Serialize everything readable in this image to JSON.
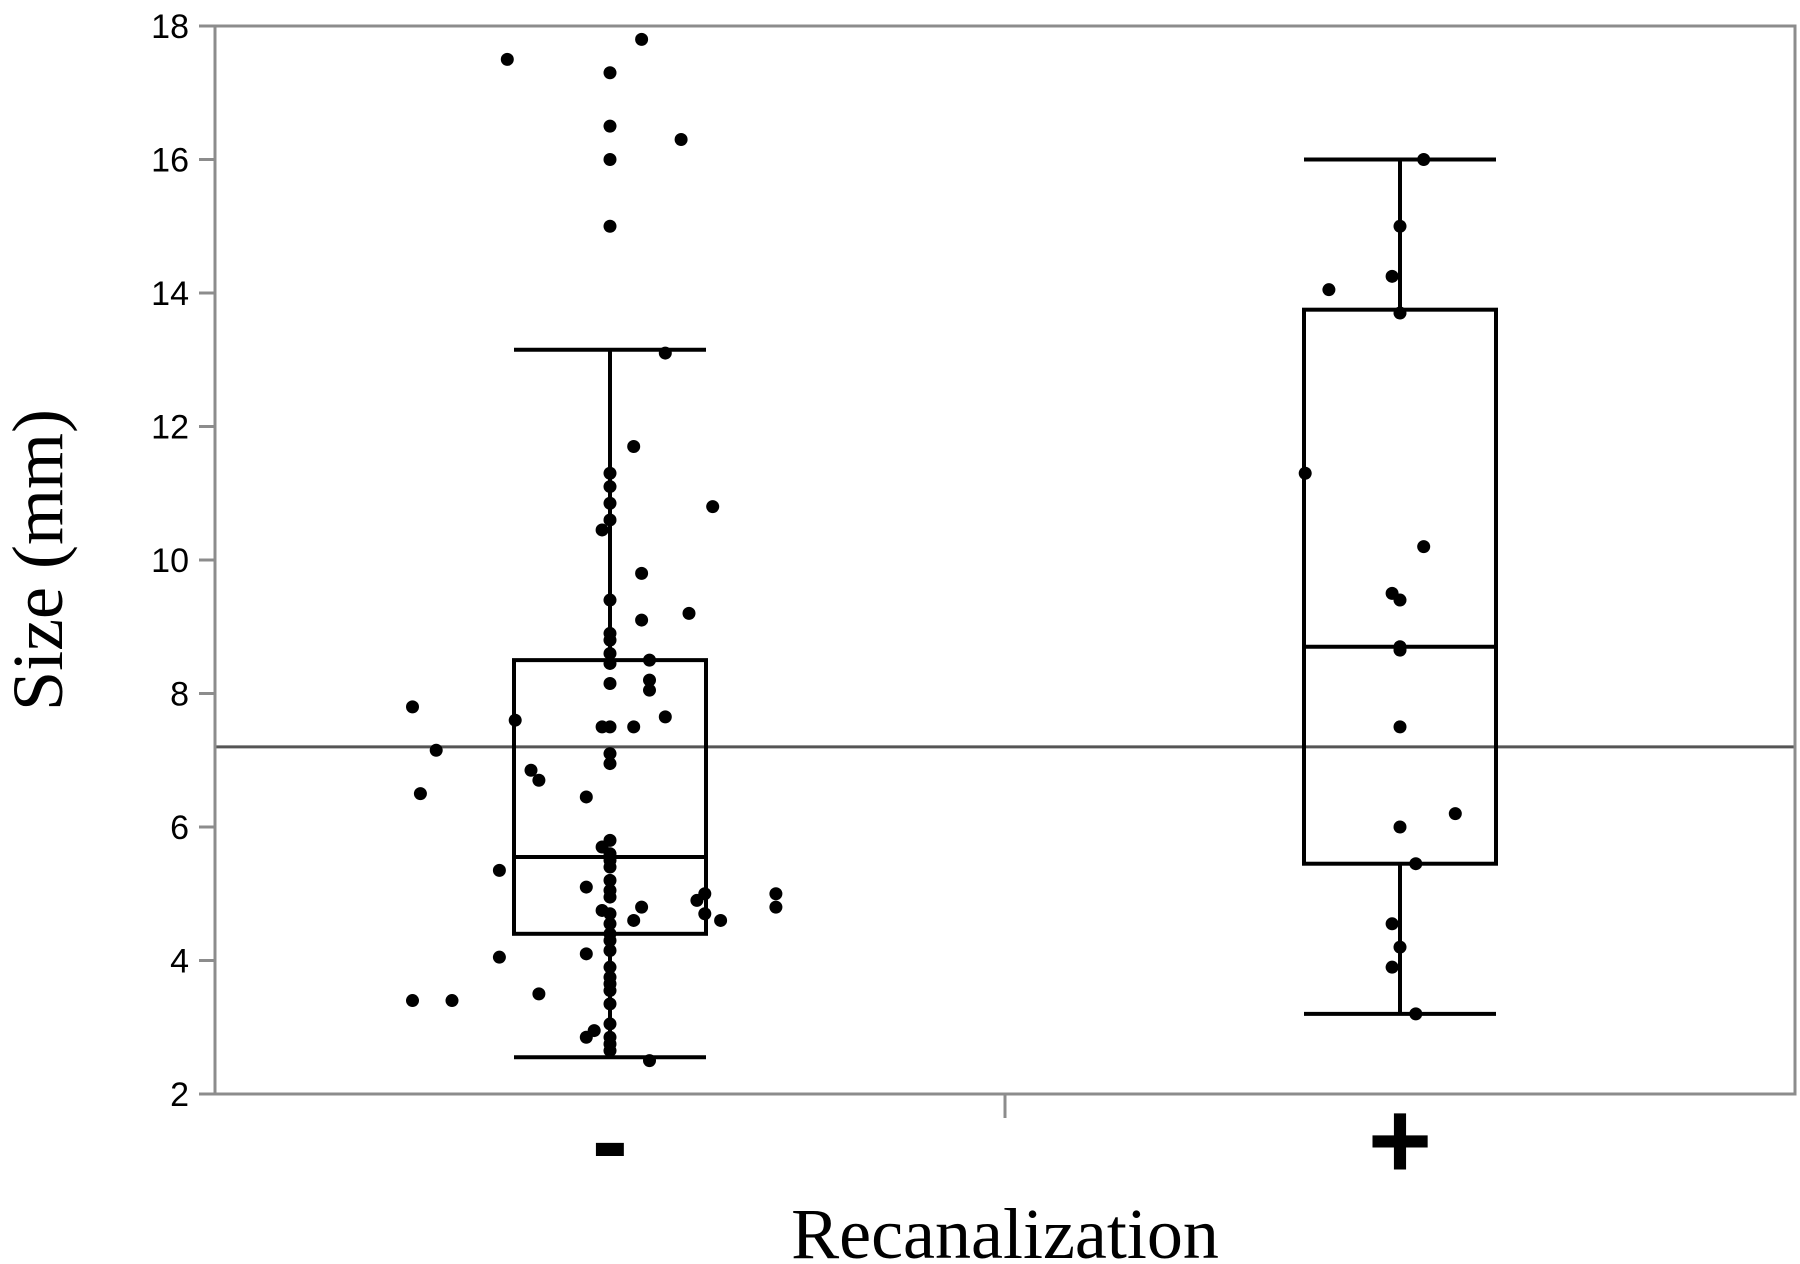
{
  "chart_data": {
    "type": "box",
    "xlabel": "Recanalization",
    "ylabel": "Size (mm)",
    "ylim": [
      2,
      18
    ],
    "yticks": [
      "2",
      "4",
      "6",
      "8",
      "10",
      "12",
      "14",
      "16",
      "18"
    ],
    "reference_line": 7.2,
    "categories": [
      "-",
      "+"
    ],
    "boxes": [
      {
        "category": "-",
        "whisker_low": 2.55,
        "q1": 4.4,
        "median": 5.55,
        "q3": 8.5,
        "whisker_high": 13.15,
        "points": [
          [
            -0.25,
            7.8
          ],
          [
            0.04,
            17.8
          ],
          [
            -0.13,
            17.5
          ],
          [
            0.0,
            17.3
          ],
          [
            0.0,
            16.5
          ],
          [
            0.09,
            16.3
          ],
          [
            0.0,
            16.0
          ],
          [
            0.0,
            15.0
          ],
          [
            0.07,
            13.1
          ],
          [
            0.03,
            11.7
          ],
          [
            0.0,
            11.3
          ],
          [
            0.0,
            11.1
          ],
          [
            0.0,
            10.85
          ],
          [
            0.13,
            10.8
          ],
          [
            0.0,
            10.6
          ],
          [
            -0.01,
            10.45
          ],
          [
            0.04,
            9.8
          ],
          [
            0.0,
            9.4
          ],
          [
            0.1,
            9.2
          ],
          [
            0.04,
            9.1
          ],
          [
            0.0,
            8.9
          ],
          [
            0.0,
            8.8
          ],
          [
            0.0,
            8.6
          ],
          [
            0.05,
            8.5
          ],
          [
            0.0,
            8.45
          ],
          [
            0.05,
            8.2
          ],
          [
            0.0,
            8.15
          ],
          [
            0.05,
            8.05
          ],
          [
            0.07,
            7.65
          ],
          [
            -0.12,
            7.6
          ],
          [
            -0.01,
            7.5
          ],
          [
            0.0,
            7.5
          ],
          [
            0.03,
            7.5
          ],
          [
            -0.22,
            7.15
          ],
          [
            0.0,
            7.1
          ],
          [
            0.0,
            6.95
          ],
          [
            -0.1,
            6.85
          ],
          [
            -0.09,
            6.7
          ],
          [
            -0.24,
            6.5
          ],
          [
            -0.03,
            6.45
          ],
          [
            0.0,
            5.8
          ],
          [
            -0.01,
            5.7
          ],
          [
            0.0,
            5.6
          ],
          [
            0.0,
            5.5
          ],
          [
            0.0,
            5.4
          ],
          [
            -0.14,
            5.35
          ],
          [
            0.0,
            5.2
          ],
          [
            -0.03,
            5.1
          ],
          [
            0.0,
            5.05
          ],
          [
            0.12,
            5.0
          ],
          [
            0.21,
            5.0
          ],
          [
            0.0,
            4.95
          ],
          [
            0.11,
            4.9
          ],
          [
            0.04,
            4.8
          ],
          [
            0.21,
            4.8
          ],
          [
            -0.01,
            4.75
          ],
          [
            0.0,
            4.7
          ],
          [
            0.12,
            4.7
          ],
          [
            0.14,
            4.6
          ],
          [
            0.03,
            4.6
          ],
          [
            0.0,
            4.55
          ],
          [
            0.0,
            4.4
          ],
          [
            0.0,
            4.3
          ],
          [
            0.0,
            4.15
          ],
          [
            -0.03,
            4.1
          ],
          [
            -0.14,
            4.05
          ],
          [
            0.0,
            3.9
          ],
          [
            0.0,
            3.75
          ],
          [
            0.0,
            3.65
          ],
          [
            0.0,
            3.55
          ],
          [
            -0.09,
            3.5
          ],
          [
            -0.25,
            3.4
          ],
          [
            -0.2,
            3.4
          ],
          [
            0.0,
            3.35
          ],
          [
            0.0,
            3.05
          ],
          [
            -0.02,
            2.95
          ],
          [
            -0.03,
            2.85
          ],
          [
            0.0,
            2.85
          ],
          [
            0.0,
            2.75
          ],
          [
            0.0,
            2.65
          ],
          [
            0.05,
            2.5
          ]
        ]
      },
      {
        "category": "+",
        "whisker_low": 3.2,
        "q1": 5.45,
        "median": 8.7,
        "q3": 13.75,
        "whisker_high": 16.0,
        "points": [
          [
            0.03,
            16.0
          ],
          [
            0.0,
            15.0
          ],
          [
            -0.09,
            14.05
          ],
          [
            -0.01,
            14.25
          ],
          [
            0.0,
            13.7
          ],
          [
            -0.12,
            11.3
          ],
          [
            0.03,
            10.2
          ],
          [
            -0.01,
            9.5
          ],
          [
            0.0,
            9.4
          ],
          [
            0.0,
            8.7
          ],
          [
            0.0,
            8.65
          ],
          [
            0.0,
            7.5
          ],
          [
            0.07,
            6.2
          ],
          [
            0.0,
            6.0
          ],
          [
            0.02,
            5.45
          ],
          [
            -0.01,
            4.55
          ],
          [
            0.0,
            4.2
          ],
          [
            -0.01,
            3.9
          ],
          [
            0.02,
            3.2
          ]
        ]
      }
    ]
  }
}
